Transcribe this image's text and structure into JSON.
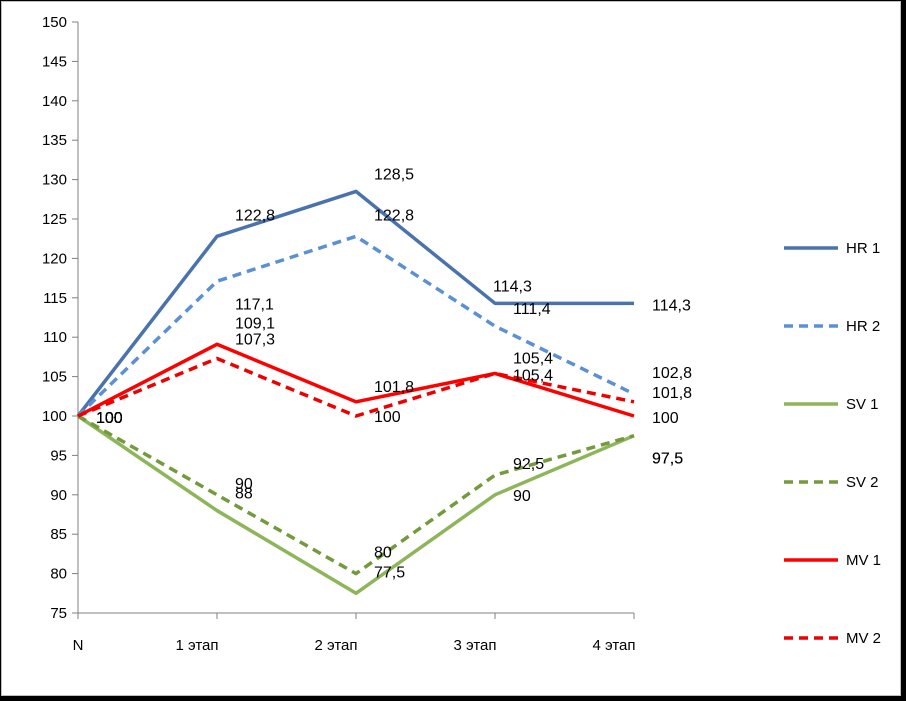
{
  "chart_data": {
    "type": "line",
    "categories": [
      "N",
      "1 этап",
      "2 этап",
      "3 этап",
      "4 этап"
    ],
    "ylim": [
      75,
      150
    ],
    "yticks": [
      75,
      80,
      85,
      90,
      95,
      100,
      105,
      110,
      115,
      120,
      125,
      130,
      135,
      140,
      145,
      150
    ],
    "grid": false,
    "legend": "right",
    "series": [
      {
        "name": "HR 1",
        "values": [
          100,
          122.8,
          128.5,
          114.3,
          114.3
        ],
        "labels": [
          "100",
          "122,8",
          "128,5",
          "114,3",
          "114,3"
        ],
        "color": "#4a73ad",
        "dash": false
      },
      {
        "name": "HR 2",
        "values": [
          100,
          117.1,
          122.8,
          111.4,
          102.8
        ],
        "labels": [
          "100",
          "117,1",
          "122,8",
          "111,4",
          "102,8"
        ],
        "color": "#5b90d5",
        "dash": true
      },
      {
        "name": "SV 1",
        "values": [
          100,
          88,
          77.5,
          90,
          97.5
        ],
        "labels": [
          "100",
          "88",
          "77,5",
          "90",
          "97,5"
        ],
        "color": "#8db55a",
        "dash": false
      },
      {
        "name": "SV 2",
        "values": [
          100,
          90,
          80,
          92.5,
          97.5
        ],
        "labels": [
          "100",
          "90",
          "80",
          "92,5",
          "97,5"
        ],
        "color": "#739a3c",
        "dash": true
      },
      {
        "name": "MV 1",
        "values": [
          100,
          109.1,
          101.8,
          105.4,
          100
        ],
        "labels": [
          "100",
          "109,1",
          "101,8",
          "105,4",
          "100"
        ],
        "color": "#ff0000",
        "dash": false
      },
      {
        "name": "MV 2",
        "values": [
          100,
          107.3,
          100,
          105.4,
          101.8
        ],
        "labels": [
          "100",
          "107,3",
          "100",
          "105,4",
          "101,8"
        ],
        "color": "#ee0000",
        "dash": true
      }
    ]
  }
}
